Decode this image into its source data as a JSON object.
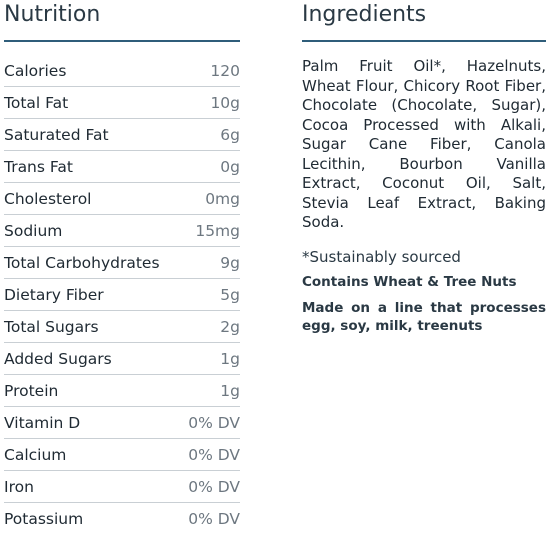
{
  "nutrition": {
    "title": "Nutrition",
    "rows": [
      {
        "label": "Calories",
        "value": "120"
      },
      {
        "label": "Total Fat",
        "value": "10g"
      },
      {
        "label": "Saturated Fat",
        "value": "6g"
      },
      {
        "label": "Trans Fat",
        "value": "0g"
      },
      {
        "label": "Cholesterol",
        "value": "0mg"
      },
      {
        "label": "Sodium",
        "value": "15mg"
      },
      {
        "label": "Total Carbohydrates",
        "value": "9g"
      },
      {
        "label": "Dietary Fiber",
        "value": "5g"
      },
      {
        "label": "Total Sugars",
        "value": "2g"
      },
      {
        "label": "Added Sugars",
        "value": "1g"
      },
      {
        "label": "Protein",
        "value": "1g"
      },
      {
        "label": "Vitamin D",
        "value": "0% DV"
      },
      {
        "label": "Calcium",
        "value": "0% DV"
      },
      {
        "label": "Iron",
        "value": "0% DV"
      },
      {
        "label": "Potassium",
        "value": "0% DV"
      }
    ]
  },
  "ingredients": {
    "title": "Ingredients",
    "text": "Palm Fruit Oil*, Hazelnuts, Wheat Flour, Chicory Root Fiber, Chocolate (Chocolate, Sugar), Cocoa Processed with Alkali, Sugar Cane Fiber, Canola Lecithin, Bourbon Vanilla Extract, Coconut Oil, Salt, Stevia Leaf Extract, Baking Soda.",
    "footnote": "*Sustainably sourced",
    "allergen": "Contains Wheat & Tree Nuts",
    "facility": "Made on a line that processes egg, soy, milk, treenuts"
  },
  "colors": {
    "rule": "#2f5d7a",
    "divider": "#c9cfd4",
    "text": "#1f2a33",
    "muted": "#6d7780"
  }
}
